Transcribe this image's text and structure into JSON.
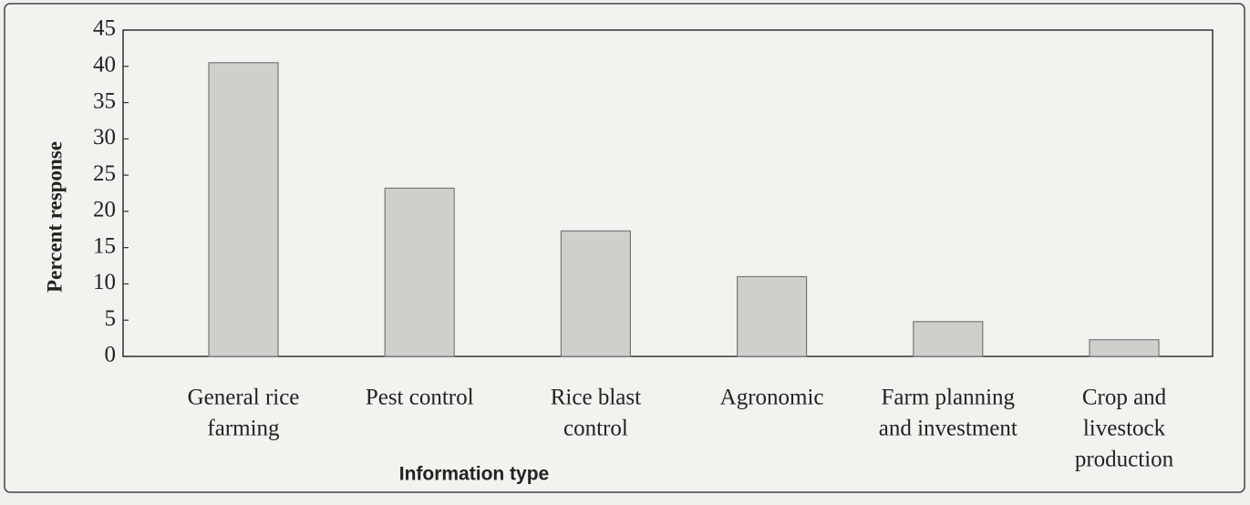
{
  "chart_data": {
    "type": "bar",
    "y_label": "Percent response",
    "x_label": "Information type",
    "categories": [
      [
        "General rice",
        "farming"
      ],
      [
        "Pest control"
      ],
      [
        "Rice blast",
        "control"
      ],
      [
        "Agronomic"
      ],
      [
        "Farm planning",
        "and investment"
      ],
      [
        "Crop and",
        "livestock",
        "production"
      ]
    ],
    "values": [
      40.5,
      23.2,
      17.3,
      11,
      4.8,
      2.3
    ],
    "color": "#cfcfcb",
    "ylim": [
      0,
      45
    ],
    "yticks": [
      0,
      5,
      10,
      15,
      20,
      25,
      30,
      35,
      40,
      45
    ]
  }
}
